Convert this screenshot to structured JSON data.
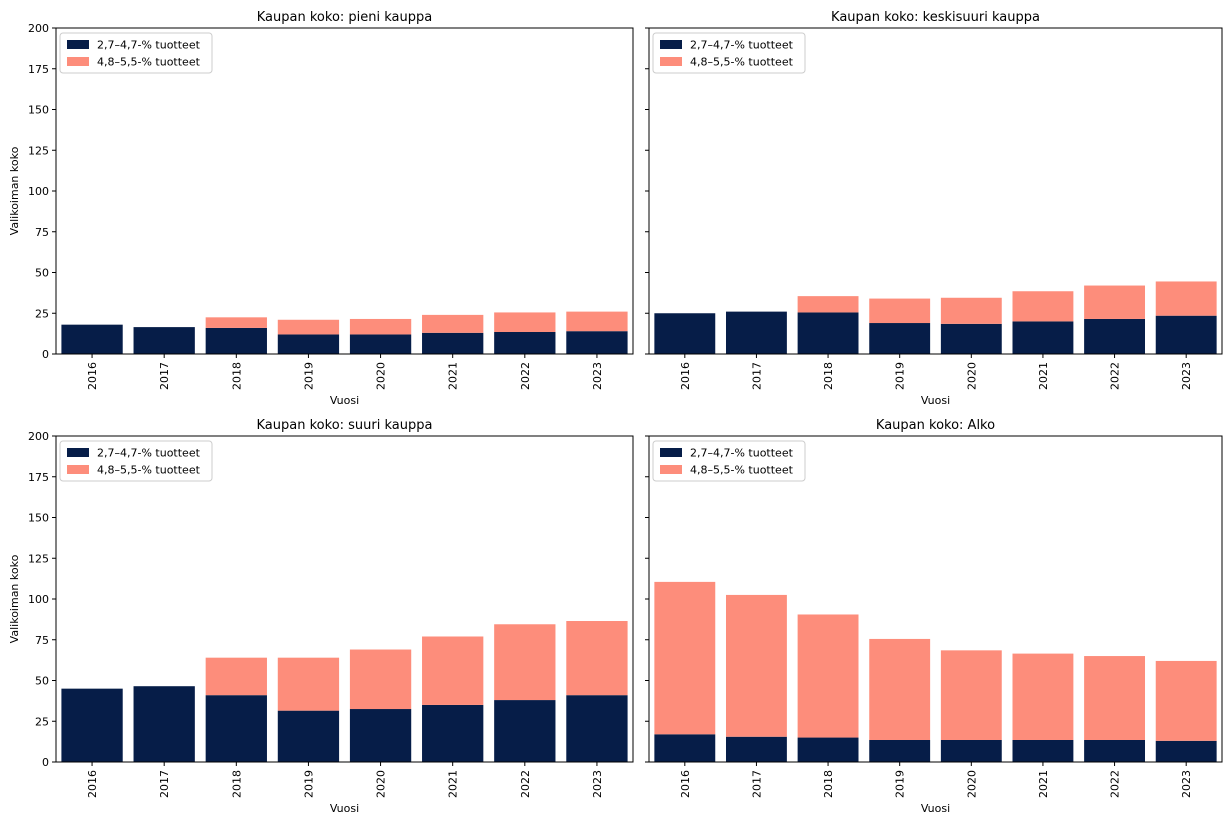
{
  "colors": {
    "low": "#061d48",
    "high": "#fd8d7b"
  },
  "chart_data": [
    {
      "type": "bar",
      "stacked": true,
      "title": "Kaupan koko: pieni kauppa",
      "xlabel": "Vuosi",
      "ylabel": "Valikoiman koko",
      "ylim": [
        0,
        200
      ],
      "yticks": [
        "0",
        "25",
        "50",
        "75",
        "100",
        "125",
        "150",
        "175",
        "200"
      ],
      "categories": [
        "2016",
        "2017",
        "2018",
        "2019",
        "2020",
        "2021",
        "2022",
        "2023"
      ],
      "series": [
        {
          "name": "2,7–4,7-% tuotteet",
          "values": [
            18,
            16.5,
            16,
            12,
            12,
            13,
            13.5,
            14
          ]
        },
        {
          "name": "4,8–5,5-% tuotteet",
          "values": [
            0,
            0,
            6.5,
            9,
            9.5,
            11,
            12,
            12
          ]
        }
      ],
      "legend": "top-left"
    },
    {
      "type": "bar",
      "stacked": true,
      "title": "Kaupan koko: keskisuuri kauppa",
      "xlabel": "Vuosi",
      "ylabel": "",
      "ylim": [
        0,
        200
      ],
      "yticks": [],
      "categories": [
        "2016",
        "2017",
        "2018",
        "2019",
        "2020",
        "2021",
        "2022",
        "2023"
      ],
      "series": [
        {
          "name": "2,7–4,7-% tuotteet",
          "values": [
            25,
            26,
            25.5,
            19,
            18.5,
            20,
            21.5,
            23.5
          ]
        },
        {
          "name": "4,8–5,5-% tuotteet",
          "values": [
            0,
            0,
            10,
            15,
            16,
            18.5,
            20.5,
            21
          ]
        }
      ],
      "legend": "top-left"
    },
    {
      "type": "bar",
      "stacked": true,
      "title": "Kaupan koko: suuri kauppa",
      "xlabel": "Vuosi",
      "ylabel": "Valikoiman koko",
      "ylim": [
        0,
        200
      ],
      "yticks": [
        "0",
        "25",
        "50",
        "75",
        "100",
        "125",
        "150",
        "175",
        "200"
      ],
      "categories": [
        "2016",
        "2017",
        "2018",
        "2019",
        "2020",
        "2021",
        "2022",
        "2023"
      ],
      "series": [
        {
          "name": "2,7–4,7-% tuotteet",
          "values": [
            45,
            46.5,
            41,
            31.5,
            32.5,
            35,
            38,
            41
          ]
        },
        {
          "name": "4,8–5,5-% tuotteet",
          "values": [
            0,
            0,
            23,
            32.5,
            36.5,
            42,
            46.5,
            45.5
          ]
        }
      ],
      "legend": "top-left"
    },
    {
      "type": "bar",
      "stacked": true,
      "title": "Kaupan koko: Alko",
      "xlabel": "Vuosi",
      "ylabel": "",
      "ylim": [
        0,
        200
      ],
      "yticks": [],
      "categories": [
        "2016",
        "2017",
        "2018",
        "2019",
        "2020",
        "2021",
        "2022",
        "2023"
      ],
      "series": [
        {
          "name": "2,7–4,7-% tuotteet",
          "values": [
            17,
            15.5,
            15,
            13.5,
            13.5,
            13.5,
            13.5,
            13
          ]
        },
        {
          "name": "4,8–5,5-% tuotteet",
          "values": [
            93.5,
            87,
            75.5,
            62,
            55,
            53,
            51.5,
            49
          ]
        }
      ],
      "legend": "top-left"
    }
  ]
}
